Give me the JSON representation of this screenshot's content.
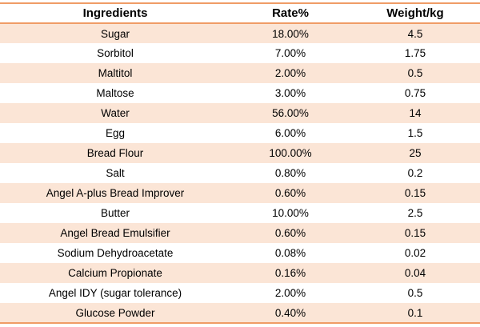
{
  "chart_data": {
    "type": "table",
    "columns": [
      "Ingredients",
      "Rate%",
      "Weight/kg"
    ],
    "rows": [
      [
        "Sugar",
        "18.00%",
        "4.5"
      ],
      [
        "Sorbitol",
        "7.00%",
        "1.75"
      ],
      [
        "Maltitol",
        "2.00%",
        "0.5"
      ],
      [
        "Maltose",
        "3.00%",
        "0.75"
      ],
      [
        "Water",
        "56.00%",
        "14"
      ],
      [
        "Egg",
        "6.00%",
        "1.5"
      ],
      [
        "Bread Flour",
        "100.00%",
        "25"
      ],
      [
        "Salt",
        "0.80%",
        "0.2"
      ],
      [
        "Angel A-plus Bread Improver",
        "0.60%",
        "0.15"
      ],
      [
        "Butter",
        "10.00%",
        "2.5"
      ],
      [
        "Angel Bread Emulsifier",
        "0.60%",
        "0.15"
      ],
      [
        "Sodium Dehydroacetate",
        "0.08%",
        "0.02"
      ],
      [
        "Calcium Propionate",
        "0.16%",
        "0.04"
      ],
      [
        "Angel IDY (sugar tolerance)",
        "2.00%",
        "0.5"
      ],
      [
        "Glucose Powder",
        "0.40%",
        "0.1"
      ]
    ],
    "layout_hints": {
      "striped": true,
      "stripe_pattern": "odd-rows-peach",
      "vertical_gridlines": false,
      "horizontal_rules": [
        "above-header",
        "below-header",
        "below-last-row"
      ]
    }
  },
  "colors": {
    "border_color": "#F09C66",
    "row_alt": "#FBE5D6",
    "row_base": "#FFFFFF",
    "text_color": "#000000"
  }
}
